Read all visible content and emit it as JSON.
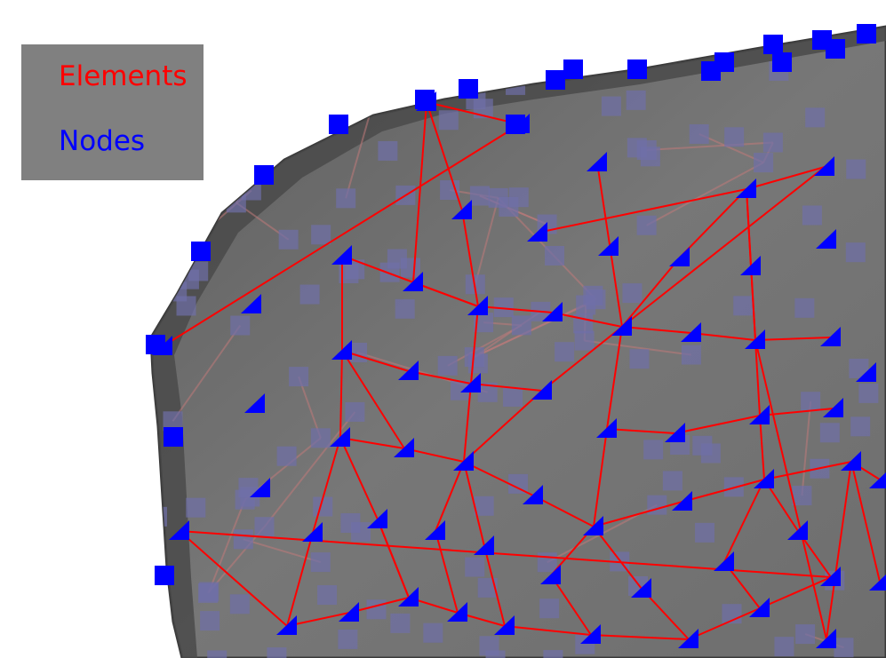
{
  "legend": {
    "items": [
      {
        "label": "Elements",
        "color": "#ff0000"
      },
      {
        "label": "Nodes",
        "color": "#0000ff"
      }
    ],
    "background": "#808080"
  },
  "scene": {
    "background": "#ffffff",
    "surface_color": "#6b6b6b",
    "element_color": "#ff0000",
    "node_color": "#0000ff"
  }
}
